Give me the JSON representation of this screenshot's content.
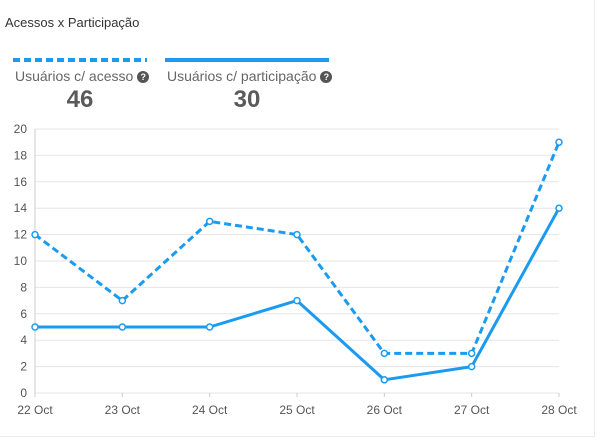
{
  "title": "Acessos x Participação",
  "legend": [
    {
      "label": "Usuários c/ acesso",
      "value": "46",
      "style": "dashed",
      "icon": "help-icon"
    },
    {
      "label": "Usuários c/ participação",
      "value": "30",
      "style": "solid",
      "icon": "help-icon"
    }
  ],
  "colors": {
    "series": "#1a9bf0",
    "grid": "#e6e6e6",
    "text": "#555555"
  },
  "chart_data": {
    "type": "line",
    "title": "Acessos x Participação",
    "x": [
      "22 Oct",
      "23 Oct",
      "24 Oct",
      "25 Oct",
      "26 Oct",
      "27 Oct",
      "28 Oct"
    ],
    "series": [
      {
        "name": "Usuários c/ acesso",
        "values": [
          12,
          7,
          13,
          12,
          3,
          3,
          19
        ],
        "style": "dashed"
      },
      {
        "name": "Usuários c/ participação",
        "values": [
          5,
          5,
          5,
          7,
          1,
          2,
          14
        ],
        "style": "solid"
      }
    ],
    "ylim": [
      0,
      20
    ],
    "yticks": [
      0,
      2,
      4,
      6,
      8,
      10,
      12,
      14,
      16,
      18,
      20
    ],
    "grid": true,
    "legend_position": "top"
  }
}
